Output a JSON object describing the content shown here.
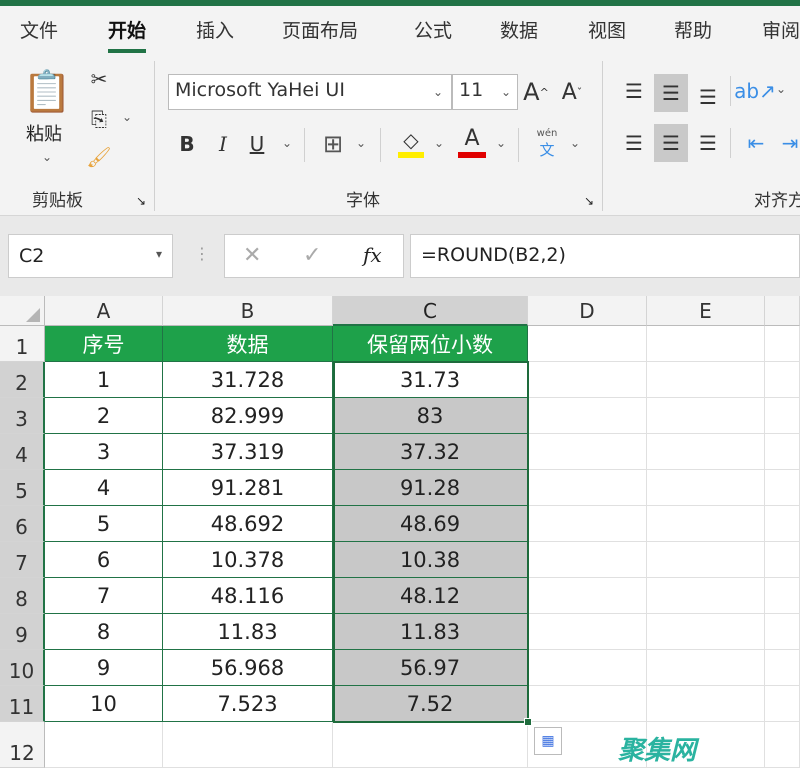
{
  "tabs": [
    "文件",
    "开始",
    "插入",
    "页面布局",
    "公式",
    "数据",
    "视图",
    "帮助",
    "审阅"
  ],
  "active_tab": "开始",
  "ribbon": {
    "clipboard": {
      "paste": "粘贴",
      "group": "剪贴板"
    },
    "font": {
      "name": "Microsoft YaHei UI",
      "size": "11",
      "group": "字体",
      "bold": "B",
      "italic": "I",
      "underline": "U",
      "font_color_glyph": "A",
      "grow": "A",
      "shrink": "A",
      "phonetic_top": "wén",
      "phonetic_bottom": "文"
    },
    "alignment": {
      "group": "对齐方"
    }
  },
  "colors": {
    "fill_color": "#ffee00",
    "font_color": "#e00000",
    "accent": "#217346",
    "header_fill": "#1ea14a"
  },
  "formula_bar": {
    "name_box": "C2",
    "cancel": "✕",
    "enter": "✓",
    "fx": "fx",
    "formula": "=ROUND(B2,2)"
  },
  "sheet": {
    "columns": [
      "A",
      "B",
      "C",
      "D",
      "E"
    ],
    "rows": [
      "1",
      "2",
      "3",
      "4",
      "5",
      "6",
      "7",
      "8",
      "9",
      "10",
      "11",
      "12"
    ],
    "headers": [
      "序号",
      "数据",
      "保留两位小数"
    ],
    "data": [
      [
        "1",
        "31.728",
        "31.73"
      ],
      [
        "2",
        "82.999",
        "83"
      ],
      [
        "3",
        "37.319",
        "37.32"
      ],
      [
        "4",
        "91.281",
        "91.28"
      ],
      [
        "5",
        "48.692",
        "48.69"
      ],
      [
        "6",
        "10.378",
        "10.38"
      ],
      [
        "7",
        "48.116",
        "48.12"
      ],
      [
        "8",
        "11.83",
        "11.83"
      ],
      [
        "9",
        "56.968",
        "56.97"
      ],
      [
        "10",
        "7.523",
        "7.52"
      ]
    ]
  },
  "watermark": "聚集网"
}
